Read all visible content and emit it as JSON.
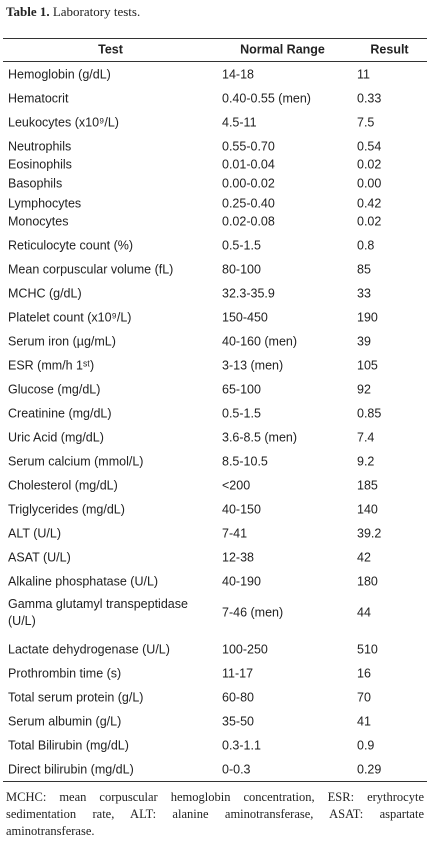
{
  "title": {
    "label": "Table 1.",
    "text": "Laboratory tests."
  },
  "table": {
    "header": [
      "Test",
      "Normal Range",
      "Result"
    ],
    "rows": [
      [
        "Hemoglobin (g/dL)",
        "14-18",
        "11"
      ],
      [
        "Hematocrit",
        "0.40-0.55 (men)",
        "0.33"
      ],
      [
        "Leukocytes (x10⁹/L)",
        "4.5-11",
        "7.5"
      ],
      [
        "Neutrophils",
        "0.55-0.70",
        "0.54"
      ],
      [
        "Eosinophils",
        "0.01-0.04",
        "0.02"
      ],
      [
        "Basophils",
        "0.00-0.02",
        "0.00"
      ],
      [
        "Lymphocytes",
        "0.25-0.40",
        "0.42"
      ],
      [
        "Monocytes",
        "0.02-0.08",
        "0.02"
      ],
      [
        "Reticulocyte count (%)",
        "0.5-1.5",
        "0.8"
      ],
      [
        "Mean corpuscular volume (fL)",
        "80-100",
        "85"
      ],
      [
        "MCHC (g/dL)",
        "32.3-35.9",
        "33"
      ],
      [
        "Platelet count (x10⁹/L)",
        "150-450",
        "190"
      ],
      [
        "Serum iron (µg/mL)",
        "40-160 (men)",
        "39"
      ],
      [
        "ESR (mm/h 1ˢᵗ)",
        "3-13 (men)",
        "105"
      ],
      [
        "Glucose (mg/dL)",
        "65-100",
        "92"
      ],
      [
        "Creatinine (mg/dL)",
        "0.5-1.5",
        "0.85"
      ],
      [
        "Uric Acid (mg/dL)",
        "3.6-8.5 (men)",
        "7.4"
      ],
      [
        "Serum calcium (mmol/L)",
        "8.5-10.5",
        "9.2"
      ],
      [
        "Cholesterol (mg/dL)",
        "<200",
        "185"
      ],
      [
        "Triglycerides (mg/dL)",
        "40-150",
        "140"
      ],
      [
        "ALT (U/L)",
        "7-41",
        "39.2"
      ],
      [
        "ASAT (U/L)",
        "12-38",
        "42"
      ],
      [
        "Alkaline phosphatase (U/L)",
        "40-190",
        "180"
      ],
      [
        "Gamma glutamyl transpeptidase (U/L)",
        "7-46 (men)",
        "44"
      ],
      [
        "Lactate dehydrogenase (U/L)",
        "100-250",
        "510"
      ],
      [
        "Prothrombin time (s)",
        "11-17",
        "16"
      ],
      [
        "Total serum protein (g/L)",
        "60-80",
        "70"
      ],
      [
        "Serum albumin (g/L)",
        "35-50",
        "41"
      ],
      [
        "Total Bilirubin (mg/dL)",
        "0.3-1.1",
        "0.9"
      ],
      [
        "Direct bilirubin (mg/dL)",
        "0-0.3",
        "0.29"
      ]
    ]
  },
  "footnote": "MCHC: mean corpuscular hemoglobin concentration, ESR: erythrocyte sedimentation rate, ALT: alanine aminotransferase, ASAT: aspartate aminotransferase."
}
